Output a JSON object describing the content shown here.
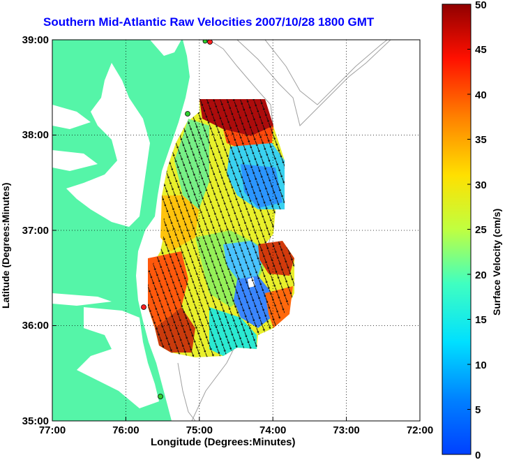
{
  "title": "Southern Mid-Atlantic Raw Velocities 2007/10/28 1800 GMT",
  "axes": {
    "xlabel": "Longitude (Degrees:Minutes)",
    "ylabel": "Latitude (Degrees:Minutes)",
    "xticks": [
      "77:00",
      "76:00",
      "75:00",
      "74:00",
      "73:00",
      "72:00"
    ],
    "yticks": [
      "39:00",
      "38:00",
      "37:00",
      "36:00",
      "35:00"
    ]
  },
  "colorbar": {
    "label": "Surface Velocity (cm/s)",
    "ticks": [
      "50",
      "45",
      "40",
      "35",
      "30",
      "25",
      "20",
      "15",
      "10",
      "5",
      "0"
    ],
    "min": 0,
    "max": 50
  },
  "colors": {
    "land": "#55f5a8",
    "water": "#ffffff",
    "title": "#0000ff",
    "station_red": "#ff2020",
    "station_green": "#30d030"
  }
}
